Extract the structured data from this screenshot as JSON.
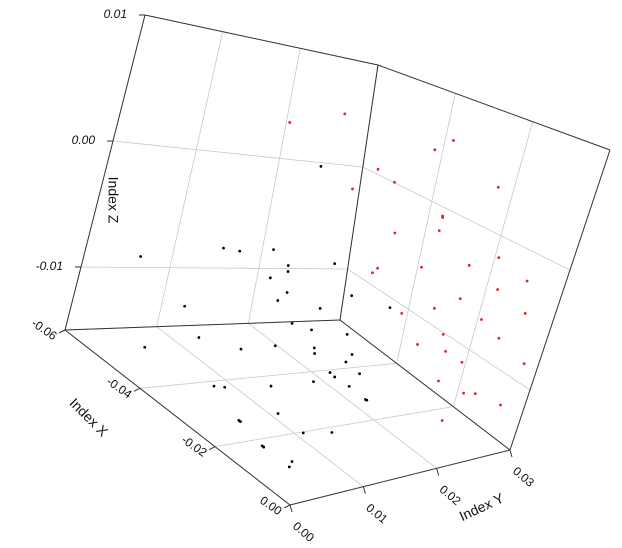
{
  "chart_data": {
    "type": "scatter3d",
    "xlabel": "Index X",
    "ylabel": "Index Y",
    "zlabel": "Index Z",
    "xlim": [
      -0.06,
      0
    ],
    "ylim": [
      0,
      0.03
    ],
    "zlim": [
      -0.015,
      0.01
    ],
    "xticks": [
      -0.06,
      -0.04,
      -0.02,
      {
        "value": 0,
        "label": "0.00"
      }
    ],
    "yticks": [
      {
        "value": 0,
        "label": "0.00"
      },
      0.01,
      0.02,
      0.03
    ],
    "zticks": [
      -0.01,
      {
        "value": 0,
        "label": "0.00"
      },
      0.01
    ],
    "grid": true,
    "series": [
      {
        "color": "#000000",
        "x": [
          -0.055,
          -0.05,
          -0.048,
          -0.045,
          -0.042,
          -0.04,
          -0.038,
          -0.036,
          -0.035,
          -0.033,
          -0.032,
          -0.03,
          -0.029,
          -0.028,
          -0.027,
          -0.026,
          -0.025,
          -0.024,
          -0.023,
          -0.022,
          -0.021,
          -0.02,
          -0.019,
          -0.018,
          -0.017,
          -0.016,
          -0.015,
          -0.014,
          -0.013,
          -0.012,
          -0.011,
          -0.01,
          -0.009,
          -0.008,
          -0.007,
          -0.006,
          -0.005,
          -0.004,
          -0.03,
          -0.02,
          -0.045,
          -0.015,
          -0.035,
          -0.025,
          -0.01
        ],
        "y": [
          0.004,
          0.008,
          0.012,
          0.002,
          0.015,
          0.006,
          0.01,
          0.013,
          0.003,
          0.009,
          0.016,
          0.005,
          0.011,
          0.014,
          0.002,
          0.008,
          0.012,
          0.017,
          0.004,
          0.01,
          0.006,
          0.013,
          0.002,
          0.009,
          0.015,
          0.005,
          0.011,
          0.003,
          0.007,
          0.014,
          0.001,
          0.009,
          0.005,
          0.012,
          0.003,
          0.008,
          0.002,
          0.006,
          0.007,
          0.004,
          0.018,
          0.01,
          0.012,
          0.016,
          0.013
        ],
        "z": [
          -0.008,
          -0.011,
          -0.006,
          -0.013,
          -0.009,
          -0.004,
          -0.012,
          -0.007,
          -0.01,
          -0.005,
          -0.011,
          -0.013,
          -0.008,
          -0.003,
          -0.012,
          -0.009,
          -0.006,
          -0.01,
          -0.014,
          -0.007,
          -0.011,
          -0.004,
          -0.013,
          -0.008,
          -0.01,
          -0.012,
          -0.006,
          -0.014,
          -0.009,
          -0.011,
          -0.013,
          -0.007,
          -0.012,
          -0.01,
          -0.014,
          -0.008,
          -0.013,
          -0.011,
          -0.002,
          -0.001,
          0.002,
          -0.009,
          -0.005,
          -0.012,
          -0.003
        ]
      },
      {
        "color": "#e8211b",
        "x": [
          -0.055,
          -0.05,
          -0.045,
          -0.04,
          -0.038,
          -0.035,
          -0.032,
          -0.03,
          -0.028,
          -0.026,
          -0.024,
          -0.022,
          -0.02,
          -0.018,
          -0.016,
          -0.015,
          -0.014,
          -0.012,
          -0.011,
          -0.01,
          -0.009,
          -0.008,
          -0.007,
          -0.006,
          -0.005,
          -0.004,
          -0.003,
          -0.002,
          -0.001,
          -0.02,
          -0.03,
          -0.025,
          -0.012,
          -0.008,
          -0.004
        ],
        "y": [
          0.018,
          0.022,
          0.025,
          0.02,
          0.028,
          0.024,
          0.021,
          0.027,
          0.019,
          0.025,
          0.023,
          0.029,
          0.02,
          0.026,
          0.022,
          0.028,
          0.024,
          0.019,
          0.027,
          0.021,
          0.025,
          0.029,
          0.023,
          0.02,
          0.026,
          0.028,
          0.024,
          0.029,
          0.027,
          0.022,
          0.026,
          0.018,
          0.023,
          0.025,
          0.021
        ],
        "z": [
          0.004,
          0.006,
          0.002,
          0.001,
          0.005,
          -0.002,
          0.003,
          -0.001,
          -0.004,
          0.001,
          -0.003,
          0.004,
          -0.006,
          -0.002,
          -0.005,
          -0.001,
          -0.004,
          -0.007,
          -0.003,
          -0.006,
          -0.005,
          -0.002,
          -0.008,
          -0.009,
          -0.006,
          -0.004,
          -0.01,
          -0.008,
          -0.011,
          0.002,
          0.007,
          -0.003,
          -0.008,
          -0.011,
          -0.012
        ]
      }
    ]
  }
}
